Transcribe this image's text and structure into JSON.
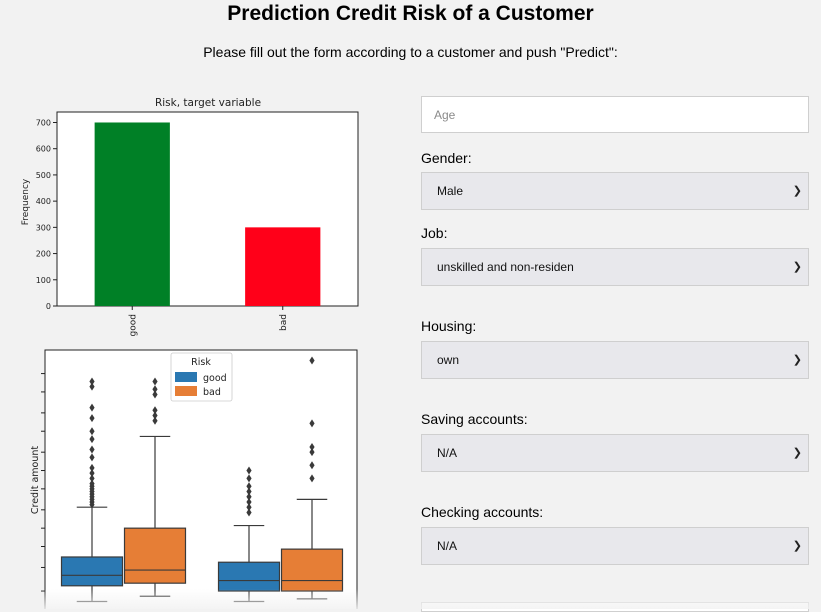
{
  "page": {
    "title": "Prediction Credit Risk of a Customer",
    "subtitle": "Please fill out the form according to a customer and push \"Predict\":"
  },
  "form": {
    "age": {
      "placeholder": "Age"
    },
    "gender": {
      "label": "Gender:",
      "value": "Male"
    },
    "job": {
      "label": "Job:",
      "value": "unskilled and non-residen"
    },
    "housing": {
      "label": "Housing:",
      "value": "own"
    },
    "saving": {
      "label": "Saving accounts:",
      "value": "N/A"
    },
    "checking": {
      "label": "Checking accounts:",
      "value": "N/A"
    },
    "chevron_icon": "chevron-down-icon"
  },
  "chart_data": [
    {
      "type": "bar",
      "title": "Risk, target variable",
      "xlabel": "",
      "ylabel": "Frequency",
      "categories": [
        "good",
        "bad"
      ],
      "values": [
        700,
        300
      ],
      "colors": [
        "#008026",
        "#ff0019"
      ],
      "ylim": [
        0,
        740
      ],
      "yticks": [
        0,
        100,
        200,
        300,
        400,
        500,
        600,
        700
      ],
      "grid": false
    },
    {
      "type": "box",
      "ylabel": "Credit amount",
      "legend": {
        "title": "Risk",
        "entries": [
          "good",
          "bad"
        ],
        "position": "top-center"
      },
      "series_colors": {
        "good": "#2a78b2",
        "bad": "#e67e36"
      },
      "groups": [
        {
          "good": {
            "whisker_low": 0.04,
            "q1": 0.1,
            "median": 0.14,
            "q3": 0.21,
            "whisker_high": 0.4,
            "outliers": [
              0.41,
              0.42,
              0.43,
              0.44,
              0.45,
              0.46,
              0.47,
              0.48,
              0.49,
              0.51,
              0.53,
              0.55,
              0.59,
              0.62,
              0.66,
              0.69,
              0.74,
              0.78,
              0.86,
              0.88
            ]
          },
          "bad": {
            "whisker_low": 0.06,
            "q1": 0.11,
            "median": 0.16,
            "q3": 0.32,
            "whisker_high": 0.67,
            "outliers": [
              0.73,
              0.75,
              0.77,
              0.83,
              0.85,
              0.88
            ]
          }
        },
        {
          "good": {
            "whisker_low": 0.04,
            "q1": 0.08,
            "median": 0.12,
            "q3": 0.19,
            "whisker_high": 0.33,
            "outliers": [
              0.38,
              0.4,
              0.42,
              0.44,
              0.46,
              0.48,
              0.51,
              0.54
            ]
          },
          "bad": {
            "whisker_low": 0.05,
            "q1": 0.08,
            "median": 0.12,
            "q3": 0.24,
            "whisker_high": 0.43,
            "outliers": [
              0.51,
              0.56,
              0.61,
              0.63,
              0.72,
              0.96
            ]
          }
        }
      ]
    }
  ]
}
